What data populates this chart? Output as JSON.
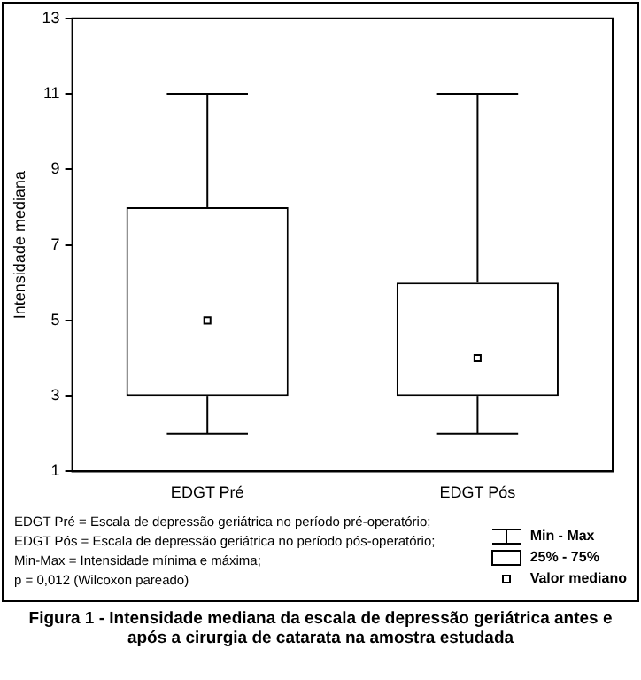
{
  "chart_data": {
    "type": "box",
    "title": "Figura 1 - Intensidade mediana da escala de depressão geriátrica antes e após a cirurgia de catarata na amostra estudada",
    "ylabel": "Intensidade mediana",
    "categories": [
      "EDGT Pré",
      "EDGT Pós"
    ],
    "boxes": [
      {
        "low": 2,
        "q1": 3,
        "median": 5,
        "q3": 8,
        "high": 11
      },
      {
        "low": 2,
        "q1": 3,
        "median": 4,
        "q3": 6,
        "high": 11
      }
    ],
    "ylim": [
      1,
      13
    ],
    "yticks": [
      1,
      3,
      5,
      7,
      9,
      11,
      13
    ],
    "marker": "square",
    "annotations": [
      "EDGT Pré = Escala de depressão geriátrica no período pré-operatório;",
      "EDGT Pós = Escala de depressão geriátrica no período pós-operatório;",
      "Min-Max = Intensidade mínima e máxima;",
      "p = 0,012 (Wilcoxon pareado)",
      "Min - Max",
      "25% - 75%",
      "Valor mediano"
    ]
  }
}
